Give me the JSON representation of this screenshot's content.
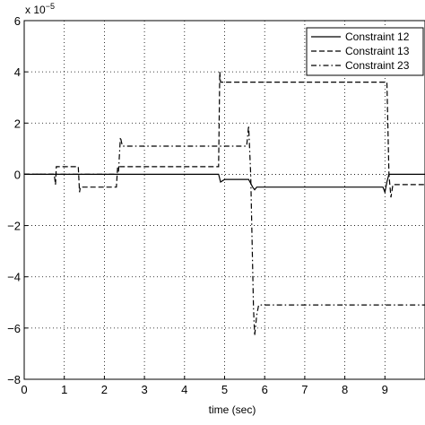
{
  "chart_data": {
    "type": "line",
    "title": "",
    "xlabel": "time (sec)",
    "ylabel": "",
    "y_multiplier": "x 10",
    "y_multiplier_exp": "−5",
    "xlim": [
      0,
      10
    ],
    "ylim": [
      -8,
      6
    ],
    "x_ticks": [
      "0",
      "1",
      "2",
      "3",
      "4",
      "5",
      "6",
      "7",
      "8",
      "9"
    ],
    "y_ticks": [
      "6",
      "4",
      "2",
      "0",
      "−2",
      "−4",
      "−6",
      "−8"
    ],
    "grid": true,
    "legend_position": "top-right",
    "series": [
      {
        "name": "Constraint 12",
        "style": "solid",
        "x": [
          0,
          4.85,
          4.9,
          5.0,
          5.6,
          5.7,
          5.75,
          5.8,
          8.95,
          9.0,
          9.05,
          9.1,
          10
        ],
        "y": [
          0,
          0,
          -0.3,
          -0.2,
          -0.2,
          -0.5,
          -0.6,
          -0.5,
          -0.5,
          -0.7,
          -0.3,
          0,
          0
        ]
      },
      {
        "name": "Constraint 13",
        "style": "dashed",
        "x": [
          0,
          0.75,
          0.78,
          0.8,
          1.35,
          1.38,
          1.4,
          2.3,
          2.33,
          2.35,
          4.85,
          4.88,
          4.9,
          5.0,
          9.05,
          9.1,
          9.15,
          9.2,
          10
        ],
        "y": [
          0,
          0,
          -0.4,
          0.3,
          0.3,
          -0.7,
          -0.5,
          -0.5,
          0.3,
          0.3,
          0.3,
          4.0,
          3.6,
          3.6,
          3.6,
          0,
          -0.9,
          -0.4,
          -0.4
        ]
      },
      {
        "name": "Constraint 23",
        "style": "dashdot",
        "x": [
          0,
          2.35,
          2.4,
          2.45,
          2.5,
          5.55,
          5.6,
          5.65,
          5.72,
          5.75,
          5.8,
          5.85,
          10
        ],
        "y": [
          0,
          0,
          1.45,
          1.1,
          1.1,
          1.1,
          1.9,
          0,
          -5.2,
          -6.3,
          -5.5,
          -5.1,
          -5.1
        ]
      }
    ]
  }
}
